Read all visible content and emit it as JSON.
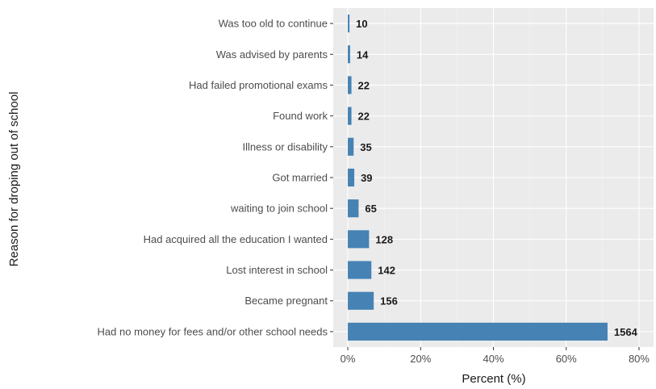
{
  "chart_data": {
    "type": "bar",
    "orientation": "horizontal",
    "xlabel": "Percent (%)",
    "ylabel": "Reason for droping out of school",
    "xlim": [
      -0.04,
      0.84
    ],
    "xticks": [
      0,
      0.2,
      0.4,
      0.6,
      0.8
    ],
    "xtick_labels": [
      "0%",
      "20%",
      "40%",
      "60%",
      "80%"
    ],
    "grid": true,
    "bar_color": "#4682B4",
    "panel_color": "#EBEBEB",
    "categories": [
      "Was too old to continue",
      "Was advised by parents",
      "Had failed promotional exams",
      "Found work",
      "Illness or disability",
      "Got married",
      "waiting to join school",
      "Had acquired all the education I wanted",
      "Lost interest in school",
      "Became pregnant",
      "Had no money for fees and/or other school needs"
    ],
    "counts": [
      10,
      14,
      22,
      22,
      35,
      39,
      65,
      128,
      142,
      156,
      1564
    ],
    "percents": [
      0.0046,
      0.0064,
      0.01,
      0.01,
      0.016,
      0.0178,
      0.0296,
      0.0584,
      0.0648,
      0.0712,
      0.7135
    ],
    "data_labels": [
      "10",
      "14",
      "22",
      "22",
      "35",
      "39",
      "65",
      "128",
      "142",
      "156",
      "1564"
    ]
  }
}
